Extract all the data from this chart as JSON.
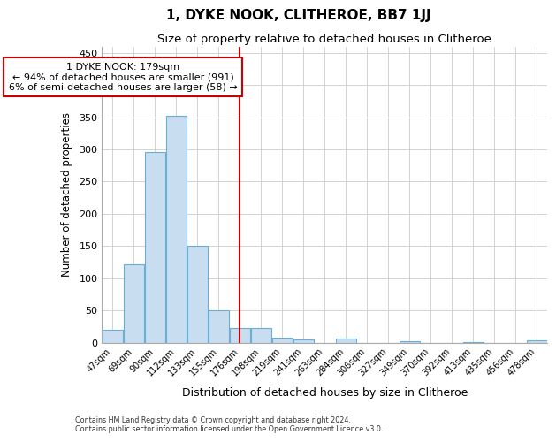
{
  "title": "1, DYKE NOOK, CLITHEROE, BB7 1JJ",
  "subtitle": "Size of property relative to detached houses in Clitheroe",
  "xlabel": "Distribution of detached houses by size in Clitheroe",
  "ylabel": "Number of detached properties",
  "bar_labels": [
    "47sqm",
    "69sqm",
    "90sqm",
    "112sqm",
    "133sqm",
    "155sqm",
    "176sqm",
    "198sqm",
    "219sqm",
    "241sqm",
    "263sqm",
    "284sqm",
    "306sqm",
    "327sqm",
    "349sqm",
    "370sqm",
    "392sqm",
    "413sqm",
    "435sqm",
    "456sqm",
    "478sqm"
  ],
  "bar_values": [
    20,
    122,
    296,
    352,
    151,
    50,
    22,
    22,
    8,
    5,
    0,
    6,
    0,
    0,
    2,
    0,
    0,
    1,
    0,
    0,
    3
  ],
  "bar_color": "#c8ddf0",
  "bar_edgecolor": "#6aaed6",
  "property_line_index": 6,
  "annotation_line1": "1 DYKE NOOK: 179sqm",
  "annotation_line2": "← 94% of detached houses are smaller (991)",
  "annotation_line3": "6% of semi-detached houses are larger (58) →",
  "annotation_box_color": "#ffffff",
  "annotation_box_edgecolor": "#cc0000",
  "vline_color": "#cc0000",
  "grid_color": "#cccccc",
  "ylim": [
    0,
    460
  ],
  "yticks": [
    0,
    50,
    100,
    150,
    200,
    250,
    300,
    350,
    400,
    450
  ],
  "bg_color": "#ffffff",
  "footer1": "Contains HM Land Registry data © Crown copyright and database right 2024.",
  "footer2": "Contains public sector information licensed under the Open Government Licence v3.0."
}
